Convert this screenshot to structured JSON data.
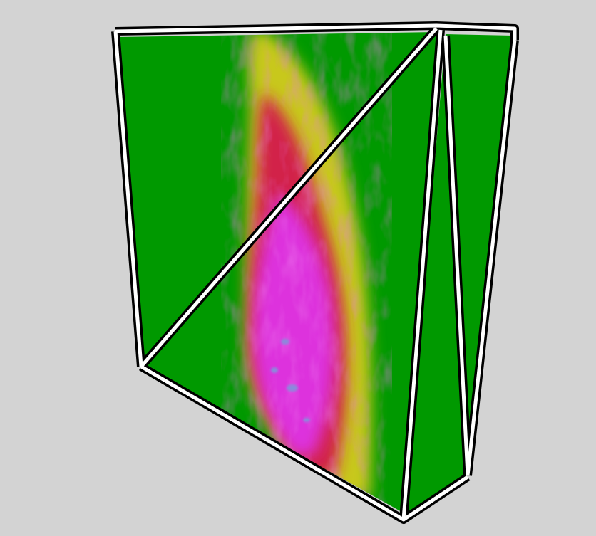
{
  "scene": {
    "background": "#d3d3d3",
    "colormap": {
      "low": "#009900",
      "mid": "#c8c81a",
      "high": "#d2224a",
      "peak": "#dd33dd",
      "max": "#8a8adc"
    },
    "frame_colors": {
      "outer": "#000000",
      "inner": "#ffffff"
    }
  }
}
